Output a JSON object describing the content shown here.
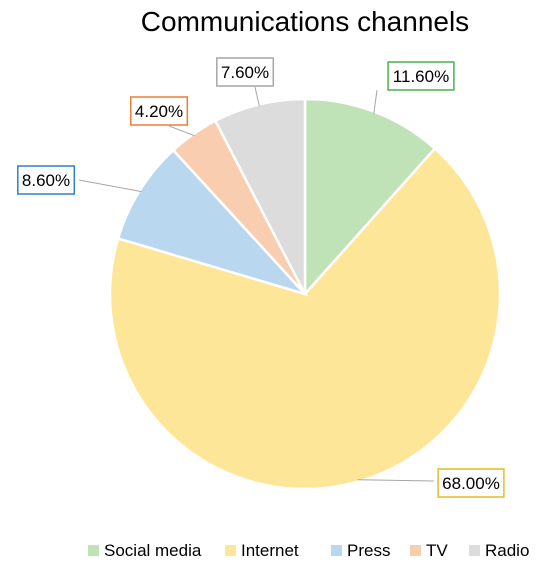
{
  "chart_data": {
    "type": "pie",
    "title": "Communications channels",
    "categories": [
      "Social media",
      "Internet",
      "Press",
      "TV",
      "Radio"
    ],
    "values": [
      11.6,
      68.0,
      8.6,
      4.2,
      7.6
    ],
    "value_labels": [
      "11.60%",
      "68.00%",
      "8.60%",
      "4.20%",
      "7.60%"
    ],
    "unit": "%",
    "start_angle_deg": 0,
    "direction": "clockwise",
    "colors": {
      "fills": [
        "#bfe3b6",
        "#fde698",
        "#b9d8f0",
        "#f9cdb0",
        "#dcdcdc"
      ],
      "borders": [
        "#4caf50",
        "#e8b923",
        "#2f80c8",
        "#ed7d31",
        "#a6a6a6"
      ]
    },
    "legend": {
      "position": "bottom",
      "entries": [
        "Social media",
        "Internet",
        "Press",
        "TV",
        "Radio"
      ]
    }
  }
}
